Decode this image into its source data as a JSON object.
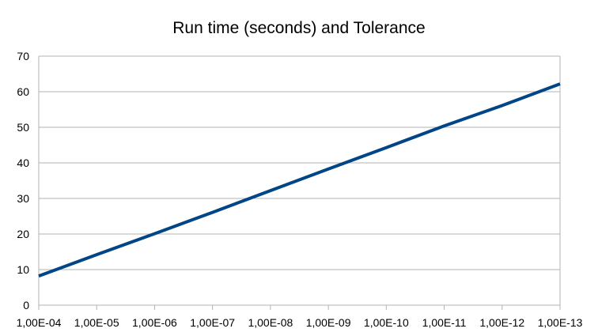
{
  "chart_data": {
    "type": "line",
    "title": "Run time (seconds) and Tolerance",
    "xlabel": "",
    "ylabel": "",
    "categories": [
      "1,00E-04",
      "1,00E-05",
      "1,00E-06",
      "1,00E-07",
      "1,00E-08",
      "1,00E-09",
      "1,00E-10",
      "1,00E-11",
      "1,00E-12",
      "1,00E-13"
    ],
    "series": [
      {
        "name": "",
        "color": "#004586",
        "values": [
          8.2,
          14.2,
          20.1,
          26.1,
          32.2,
          38.3,
          44.3,
          50.4,
          56.1,
          62.2
        ]
      }
    ],
    "ylim": [
      0,
      70
    ],
    "yticks": [
      0,
      10,
      20,
      30,
      40,
      50,
      60,
      70
    ],
    "grid": true,
    "legend": "none"
  }
}
